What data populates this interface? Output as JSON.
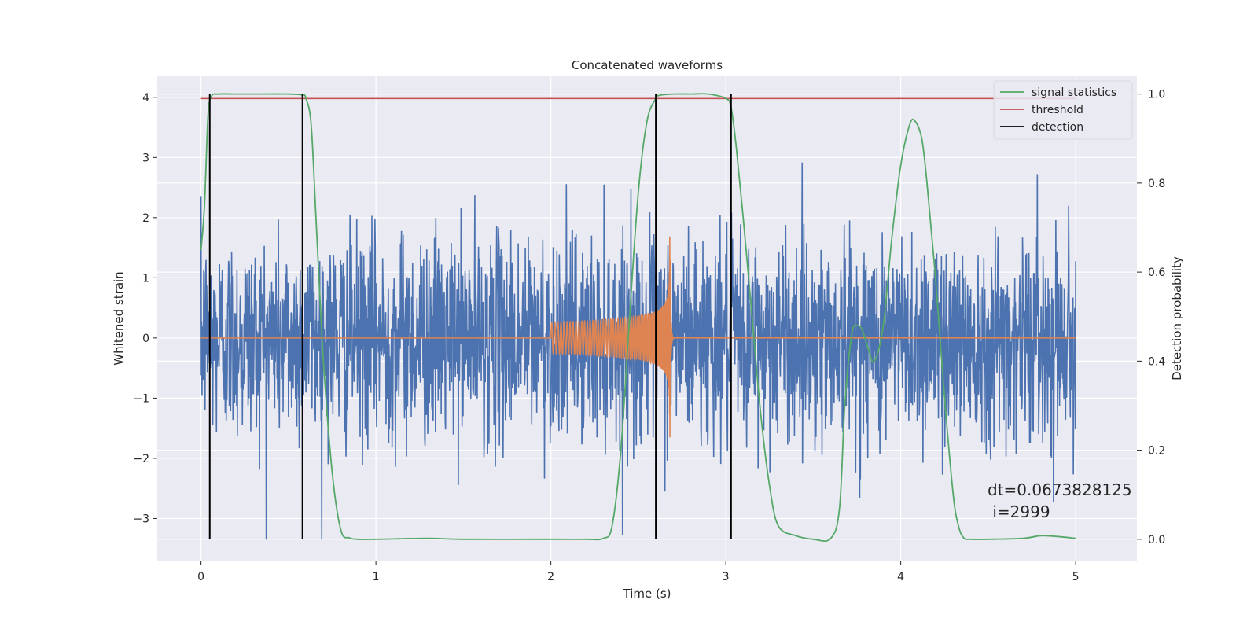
{
  "chart_data": {
    "type": "line",
    "title": "Concatenated waveforms",
    "xlabel": "Time (s)",
    "ylabel": "Whitened strain",
    "y2label": "Detection probability",
    "xlim": [
      -0.25,
      5.35
    ],
    "ylim": [
      -3.7,
      4.35
    ],
    "y2lim": [
      -0.048,
      1.04
    ],
    "xticks": [
      0,
      1,
      2,
      3,
      4,
      5
    ],
    "xtick_labels": [
      "0",
      "1",
      "2",
      "3",
      "4",
      "5"
    ],
    "yticks": [
      -3,
      -2,
      -1,
      0,
      1,
      2,
      3,
      4
    ],
    "ytick_labels": [
      "−3",
      "−2",
      "−1",
      "0",
      "1",
      "2",
      "3",
      "4"
    ],
    "y2ticks": [
      0.0,
      0.2,
      0.4,
      0.6,
      0.8,
      1.0
    ],
    "y2tick_labels": [
      "0.0",
      "0.2",
      "0.4",
      "0.6",
      "0.8",
      "1.0"
    ],
    "grid": true,
    "legend_position": "top-right",
    "colors": {
      "strain": "#4c72b0",
      "injection": "#dd8452",
      "signal_statistics": "#55a868",
      "threshold": "#c44e52",
      "detection": "#000000",
      "background": "#eaeaf2",
      "grid": "#ffffff"
    },
    "legend": [
      {
        "label": "signal statistics",
        "color": "#55a868"
      },
      {
        "label": "threshold",
        "color": "#c44e52"
      },
      {
        "label": "detection",
        "color": "#000000"
      }
    ],
    "series": [
      {
        "name": "signal statistics",
        "axis": "right",
        "x": [
          0.0,
          0.02,
          0.04,
          0.06,
          0.1,
          0.2,
          0.3,
          0.5,
          0.58,
          0.6,
          0.63,
          0.66,
          0.7,
          0.75,
          0.8,
          0.85,
          0.9,
          1.0,
          1.3,
          1.5,
          2.0,
          2.2,
          2.3,
          2.35,
          2.4,
          2.45,
          2.5,
          2.55,
          2.6,
          2.62,
          2.7,
          2.8,
          2.9,
          3.0,
          3.03,
          3.06,
          3.1,
          3.15,
          3.2,
          3.25,
          3.3,
          3.4,
          3.5,
          3.6,
          3.65,
          3.68,
          3.72,
          3.75,
          3.78,
          3.82,
          3.85,
          3.9,
          3.95,
          4.0,
          4.05,
          4.08,
          4.12,
          4.15,
          4.2,
          4.25,
          4.3,
          4.33,
          4.36,
          4.4,
          4.5,
          4.7,
          4.8,
          4.9,
          5.0
        ],
        "y": [
          0.65,
          0.75,
          0.95,
          0.995,
          1.0,
          1.0,
          1.0,
          1.0,
          0.998,
          0.99,
          0.93,
          0.7,
          0.4,
          0.15,
          0.02,
          0.003,
          0.0,
          0.0,
          0.002,
          0.0,
          0.0,
          0.0,
          0.002,
          0.03,
          0.2,
          0.5,
          0.78,
          0.94,
          0.99,
          0.997,
          1.0,
          1.0,
          1.0,
          0.99,
          0.97,
          0.88,
          0.72,
          0.5,
          0.28,
          0.12,
          0.03,
          0.008,
          0.0,
          0.002,
          0.07,
          0.3,
          0.46,
          0.48,
          0.47,
          0.42,
          0.4,
          0.48,
          0.68,
          0.84,
          0.93,
          0.94,
          0.9,
          0.8,
          0.58,
          0.32,
          0.1,
          0.03,
          0.003,
          0.0,
          0.0,
          0.002,
          0.008,
          0.006,
          0.002
        ]
      },
      {
        "name": "threshold",
        "axis": "right",
        "x": [
          0.0,
          5.0
        ],
        "y": [
          0.99,
          0.99
        ]
      },
      {
        "name": "detection",
        "axis": "right",
        "type": "vlines",
        "x": [
          0.05,
          0.58,
          2.6,
          3.03
        ],
        "ymin": 0.0,
        "ymax": 1.0
      },
      {
        "name": "",
        "axis": "left",
        "type": "noise",
        "x_range": [
          0.0,
          5.0
        ],
        "approx_std": 0.85,
        "approx_range": [
          -3.35,
          3.45
        ]
      },
      {
        "name": "",
        "axis": "left",
        "type": "chirp",
        "x_range": [
          0.0,
          5.0
        ],
        "chirp_start": 2.0,
        "merger": 2.68,
        "max_amplitude": 1.85
      }
    ],
    "annotation": {
      "line1": "dt=0.0673828125",
      "line2": " i=2999"
    }
  }
}
